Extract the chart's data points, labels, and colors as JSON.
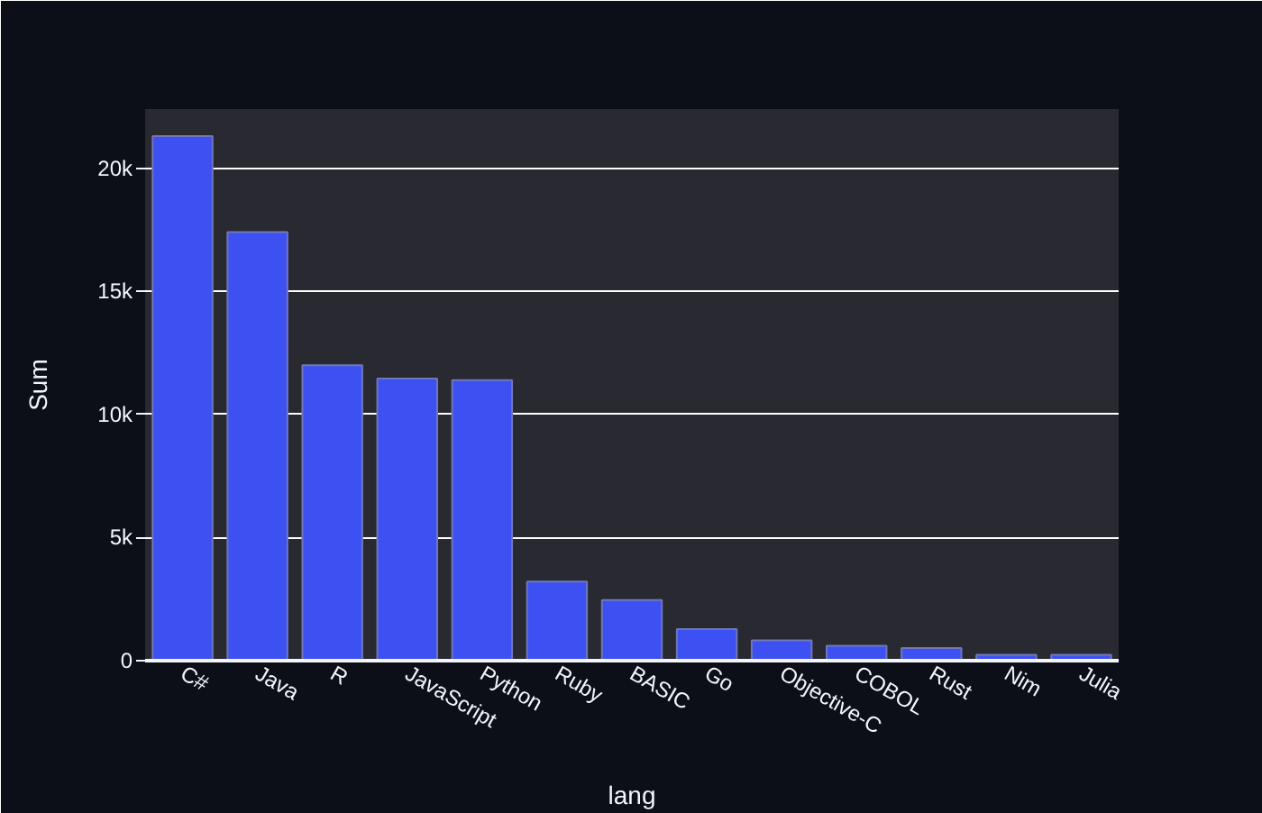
{
  "chart_data": {
    "type": "bar",
    "xlabel": "lang",
    "ylabel": "Sum",
    "categories": [
      "C#",
      "Java",
      "R",
      "JavaScript",
      "Python",
      "Ruby",
      "BASIC",
      "Go",
      "Objective-C",
      "COBOL",
      "Rust",
      "Nim",
      "Julia"
    ],
    "values": [
      21300,
      17400,
      12000,
      11460,
      11390,
      3210,
      2460,
      1280,
      820,
      600,
      510,
      240,
      240
    ],
    "color": "#3d50f2",
    "ylim": [
      0,
      22400
    ],
    "yticks": [
      0,
      {
        "value": 5000,
        "label": "5k"
      },
      {
        "value": 10000,
        "label": "10k"
      },
      {
        "value": 15000,
        "label": "15k"
      },
      {
        "value": 20000,
        "label": "20k"
      }
    ],
    "grid": "y"
  }
}
